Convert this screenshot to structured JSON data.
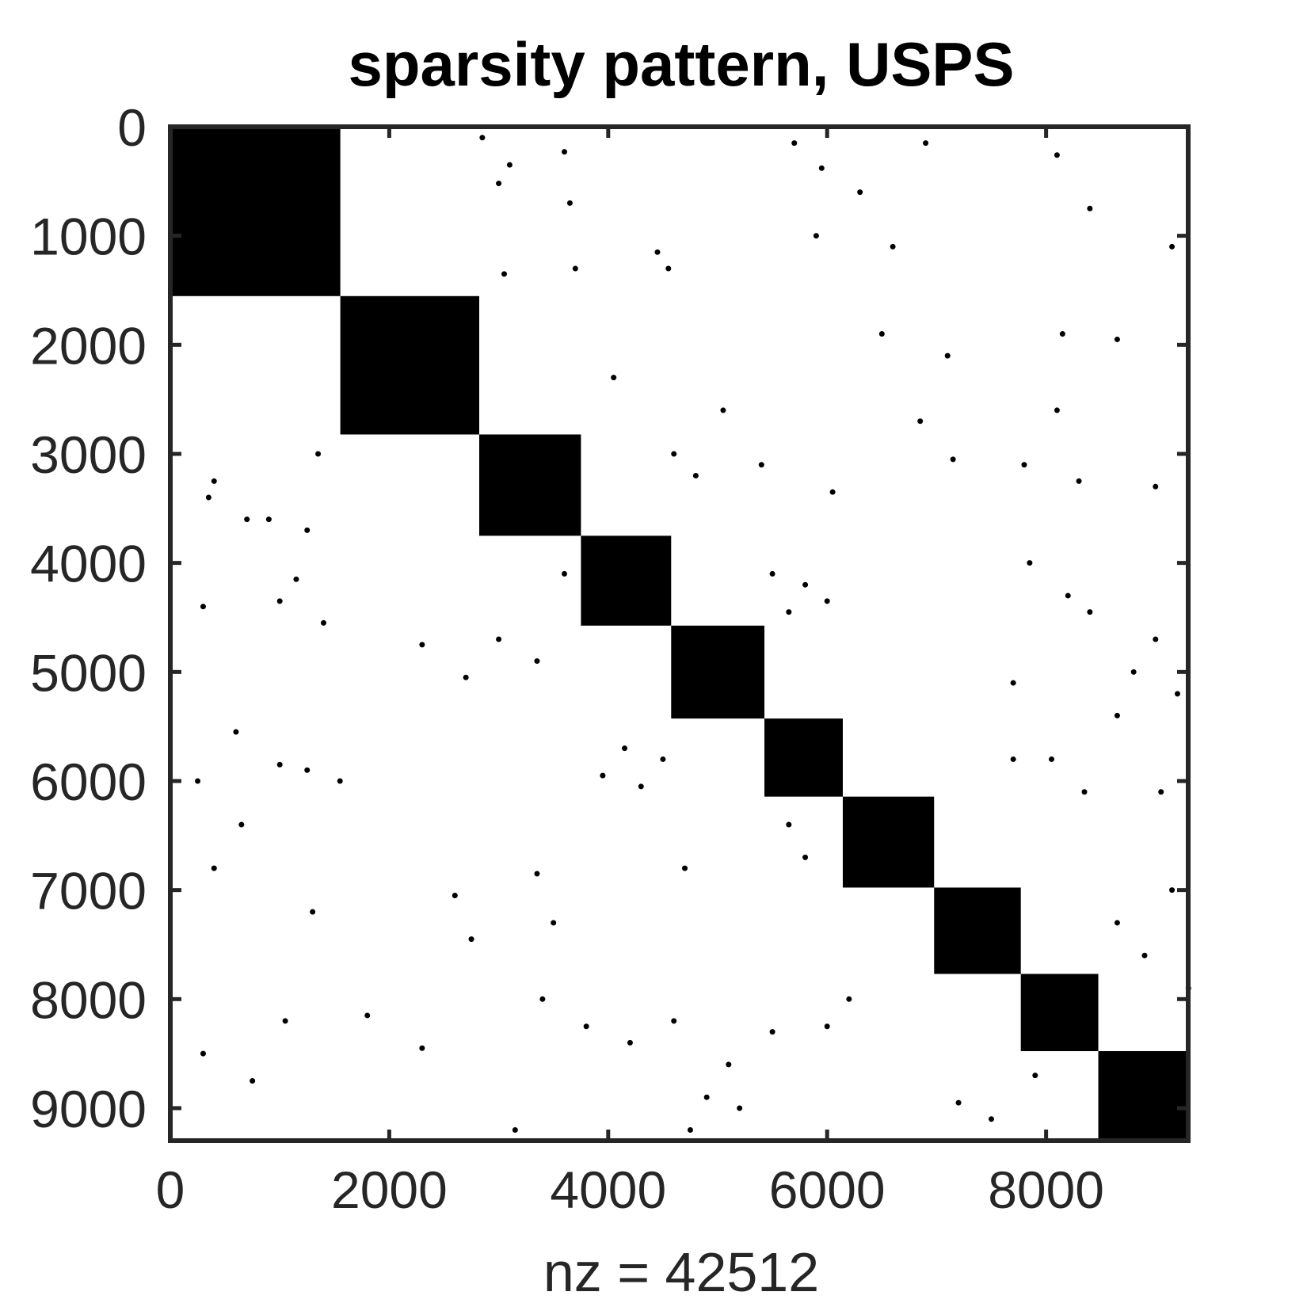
{
  "chart_data": {
    "type": "scatter",
    "subtype": "sparsity-pattern",
    "title": "sparsity pattern, USPS",
    "xlabel": "nz = 42512",
    "ylabel": "",
    "xlim": [
      0,
      9298
    ],
    "ylim": [
      9298,
      0
    ],
    "y_axis_direction": "top-to-bottom",
    "x_ticks": [
      "0",
      "2000",
      "4000",
      "6000",
      "8000"
    ],
    "y_ticks": [
      "0",
      "1000",
      "2000",
      "3000",
      "4000",
      "5000",
      "6000",
      "7000",
      "8000",
      "9000"
    ],
    "grid": false,
    "marker_color": "#000000",
    "diagonal_blocks": [
      {
        "start": 0,
        "end": 1553
      },
      {
        "start": 1553,
        "end": 2822
      },
      {
        "start": 2822,
        "end": 3751
      },
      {
        "start": 3751,
        "end": 4575
      },
      {
        "start": 4575,
        "end": 5427
      },
      {
        "start": 5427,
        "end": 6143
      },
      {
        "start": 6143,
        "end": 6977
      },
      {
        "start": 6977,
        "end": 7769
      },
      {
        "start": 7769,
        "end": 8477
      },
      {
        "start": 8477,
        "end": 9298
      }
    ],
    "off_block_point_sample": [
      [
        2850,
        100
      ],
      [
        3600,
        230
      ],
      [
        3100,
        350
      ],
      [
        3000,
        520
      ],
      [
        3650,
        700
      ],
      [
        4450,
        1150
      ],
      [
        4550,
        1300
      ],
      [
        5700,
        150
      ],
      [
        5950,
        380
      ],
      [
        6300,
        600
      ],
      [
        5900,
        1000
      ],
      [
        6600,
        1100
      ],
      [
        6900,
        150
      ],
      [
        8100,
        260
      ],
      [
        8400,
        750
      ],
      [
        9150,
        1100
      ],
      [
        3050,
        1350
      ],
      [
        3700,
        1300
      ],
      [
        6500,
        1900
      ],
      [
        7100,
        2100
      ],
      [
        8150,
        1900
      ],
      [
        8650,
        1950
      ],
      [
        4050,
        2300
      ],
      [
        5050,
        2600
      ],
      [
        6850,
        2700
      ],
      [
        8100,
        2600
      ],
      [
        1350,
        3000
      ],
      [
        400,
        3250
      ],
      [
        350,
        3400
      ],
      [
        700,
        3600
      ],
      [
        900,
        3600
      ],
      [
        1250,
        3700
      ],
      [
        4600,
        3000
      ],
      [
        4800,
        3200
      ],
      [
        5400,
        3100
      ],
      [
        6050,
        3350
      ],
      [
        7150,
        3050
      ],
      [
        7800,
        3100
      ],
      [
        8300,
        3250
      ],
      [
        9000,
        3300
      ],
      [
        1150,
        4150
      ],
      [
        1000,
        4350
      ],
      [
        1400,
        4550
      ],
      [
        300,
        4400
      ],
      [
        3600,
        4100
      ],
      [
        5500,
        4100
      ],
      [
        5800,
        4200
      ],
      [
        5650,
        4450
      ],
      [
        6000,
        4350
      ],
      [
        7850,
        4000
      ],
      [
        8200,
        4300
      ],
      [
        8400,
        4450
      ],
      [
        2300,
        4750
      ],
      [
        2700,
        5050
      ],
      [
        3000,
        4700
      ],
      [
        3350,
        4900
      ],
      [
        9000,
        4700
      ],
      [
        8800,
        5000
      ],
      [
        9200,
        5200
      ],
      [
        8650,
        5400
      ],
      [
        7700,
        5100
      ],
      [
        4150,
        5700
      ],
      [
        3950,
        5950
      ],
      [
        4300,
        6050
      ],
      [
        4500,
        5800
      ],
      [
        600,
        5550
      ],
      [
        1000,
        5850
      ],
      [
        1250,
        5900
      ],
      [
        250,
        6000
      ],
      [
        650,
        6400
      ],
      [
        1550,
        6000
      ],
      [
        8050,
        5800
      ],
      [
        8350,
        6100
      ],
      [
        7700,
        5800
      ],
      [
        9050,
        6100
      ],
      [
        5650,
        6400
      ],
      [
        5800,
        6700
      ],
      [
        4700,
        6800
      ],
      [
        3350,
        6850
      ],
      [
        2600,
        7050
      ],
      [
        2750,
        7450
      ],
      [
        3500,
        7300
      ],
      [
        1300,
        7200
      ],
      [
        400,
        6800
      ],
      [
        9150,
        7000
      ],
      [
        8900,
        7600
      ],
      [
        9300,
        7900
      ],
      [
        8650,
        7300
      ],
      [
        3400,
        8000
      ],
      [
        3800,
        8250
      ],
      [
        4200,
        8400
      ],
      [
        4600,
        8200
      ],
      [
        6200,
        8000
      ],
      [
        6000,
        8250
      ],
      [
        5500,
        8300
      ],
      [
        1050,
        8200
      ],
      [
        1800,
        8150
      ],
      [
        300,
        8500
      ],
      [
        750,
        8750
      ],
      [
        5100,
        8600
      ],
      [
        4900,
        8900
      ],
      [
        5200,
        9000
      ],
      [
        4750,
        9200
      ],
      [
        7200,
        8950
      ],
      [
        7500,
        9100
      ],
      [
        7900,
        8700
      ],
      [
        3150,
        9200
      ],
      [
        2300,
        8450
      ]
    ]
  }
}
